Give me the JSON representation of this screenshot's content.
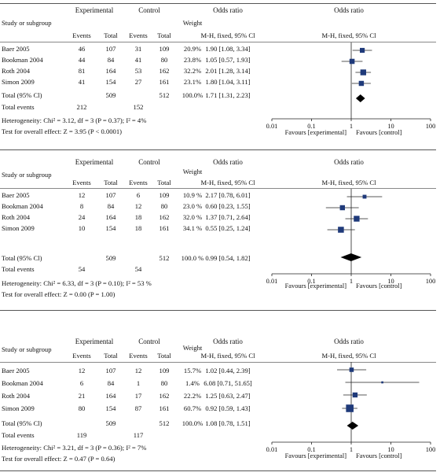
{
  "columns": {
    "study": "Study or subgroup",
    "experimental": "Experimental",
    "control": "Control",
    "events": "Events",
    "total": "Total",
    "weight": "Weight",
    "or_group": "Odds ratio",
    "or_method": "M-H, fixed, 95% Cl",
    "plot_group": "Odds ratio",
    "plot_method": "M-H, fixed, 95% Cl"
  },
  "labels": {
    "total_ci": "Total (95% Cl)",
    "total_events": "Total events"
  },
  "axis": {
    "favours_left": "Favours [experimental]",
    "favours_right": "Favours [control]"
  },
  "chart_data": [
    {
      "type": "forest",
      "axis_scale": "log",
      "xlim": [
        0.01,
        100
      ],
      "ticks": [
        {
          "value": 0.01,
          "label": "0.01"
        },
        {
          "value": 0.1,
          "label": "0.1"
        },
        {
          "value": 1,
          "label": "1"
        },
        {
          "value": 10,
          "label": "10"
        },
        {
          "value": 100,
          "label": "100"
        }
      ],
      "studies": [
        {
          "name": "Baer 2005",
          "exp_events": "46",
          "exp_total": "107",
          "ctl_events": "31",
          "ctl_total": "109",
          "weight": "20.9%",
          "or_text": "1.90 [1.08, 3.34]",
          "or": 1.9,
          "lo": 1.08,
          "hi": 3.34,
          "w": 20.9
        },
        {
          "name": "Bookman 2004",
          "exp_events": "44",
          "exp_total": "84",
          "ctl_events": "41",
          "ctl_total": "80",
          "weight": "23.8%",
          "or_text": "1.05 [0.57, 1.93]",
          "or": 1.05,
          "lo": 0.57,
          "hi": 1.93,
          "w": 23.8
        },
        {
          "name": "Roth 2004",
          "exp_events": "81",
          "exp_total": "164",
          "ctl_events": "53",
          "ctl_total": "162",
          "weight": "32.2%",
          "or_text": "2.01 [1.28, 3.14]",
          "or": 2.01,
          "lo": 1.28,
          "hi": 3.14,
          "w": 32.2
        },
        {
          "name": "Simon 2009",
          "exp_events": "41",
          "exp_total": "154",
          "ctl_events": "27",
          "ctl_total": "161",
          "weight": "23.1%",
          "or_text": "1.80 [1.04, 3.11]",
          "or": 1.8,
          "lo": 1.04,
          "hi": 3.11,
          "w": 23.1
        }
      ],
      "total": {
        "exp_total": "509",
        "ctl_total": "512",
        "weight": "100.0%",
        "or_text": "1.71 [1.31, 2.23]",
        "or": 1.71,
        "lo": 1.31,
        "hi": 2.23
      },
      "total_events": {
        "exp": "212",
        "ctl": "152"
      },
      "heterogeneity": "Heterogeneity: Chi² = 3.12, df = 3 (P = 0.37); I² = 4%",
      "overall_effect": "Test for overall effect: Z = 3.95 (P < 0.0001)"
    },
    {
      "type": "forest",
      "axis_scale": "log",
      "xlim": [
        0.01,
        100
      ],
      "ticks": [
        {
          "value": 0.01,
          "label": "0.01"
        },
        {
          "value": 0.1,
          "label": "0.1"
        },
        {
          "value": 1,
          "label": "1"
        },
        {
          "value": 10,
          "label": "10"
        },
        {
          "value": 100,
          "label": "100"
        }
      ],
      "studies": [
        {
          "name": "Baer 2005",
          "exp_events": "12",
          "exp_total": "107",
          "ctl_events": "6",
          "ctl_total": "109",
          "weight": "10.9 %",
          "or_text": "2.17 [0.78, 6.01]",
          "or": 2.17,
          "lo": 0.78,
          "hi": 6.01,
          "w": 10.9
        },
        {
          "name": "Bookman 2004",
          "exp_events": "8",
          "exp_total": "84",
          "ctl_events": "12",
          "ctl_total": "80",
          "weight": "23.0 %",
          "or_text": "0.60 [0.23, 1.55]",
          "or": 0.6,
          "lo": 0.23,
          "hi": 1.55,
          "w": 23.0
        },
        {
          "name": "Roth 2004",
          "exp_events": "24",
          "exp_total": "164",
          "ctl_events": "18",
          "ctl_total": "162",
          "weight": "32.0 %",
          "or_text": "1.37 [0.71, 2.64]",
          "or": 1.37,
          "lo": 0.71,
          "hi": 2.64,
          "w": 32.0
        },
        {
          "name": "Simon 2009",
          "exp_events": "10",
          "exp_total": "154",
          "ctl_events": "18",
          "ctl_total": "161",
          "weight": "34.1 %",
          "or_text": "0.55 [0.25, 1.24]",
          "or": 0.55,
          "lo": 0.25,
          "hi": 1.24,
          "w": 34.1
        }
      ],
      "total": {
        "exp_total": "509",
        "ctl_total": "512",
        "weight": "100.0 %",
        "or_text": "0.99 [0.54, 1.82]",
        "or": 0.99,
        "lo": 0.54,
        "hi": 1.82
      },
      "total_events": {
        "exp": "54",
        "ctl": "54"
      },
      "heterogeneity": "Heterogeneity: Chi² = 6.33, df = 3 (P = 0.10); I² = 53 %",
      "overall_effect": "Test for overall effect: Z = 0.00 (P = 1.00)"
    },
    {
      "type": "forest",
      "axis_scale": "log",
      "xlim": [
        0.01,
        100
      ],
      "ticks": [
        {
          "value": 0.01,
          "label": "0.01"
        },
        {
          "value": 0.1,
          "label": "0.1"
        },
        {
          "value": 1,
          "label": "1"
        },
        {
          "value": 10,
          "label": "10"
        },
        {
          "value": 100,
          "label": "100"
        }
      ],
      "studies": [
        {
          "name": "Baer 2005",
          "exp_events": "12",
          "exp_total": "107",
          "ctl_events": "12",
          "ctl_total": "109",
          "weight": "15.7%",
          "or_text": "1.02 [0.44, 2.39]",
          "or": 1.02,
          "lo": 0.44,
          "hi": 2.39,
          "w": 15.7
        },
        {
          "name": "Bookman 2004",
          "exp_events": "6",
          "exp_total": "84",
          "ctl_events": "1",
          "ctl_total": "80",
          "weight": "1.4%",
          "or_text": "6.08 [0.71, 51.65]",
          "or": 6.08,
          "lo": 0.71,
          "hi": 51.65,
          "w": 1.4
        },
        {
          "name": "Roth 2004",
          "exp_events": "21",
          "exp_total": "164",
          "ctl_events": "17",
          "ctl_total": "162",
          "weight": "22.2%",
          "or_text": "1.25 [0.63, 2.47]",
          "or": 1.25,
          "lo": 0.63,
          "hi": 2.47,
          "w": 22.2
        },
        {
          "name": "Simon 2009",
          "exp_events": "80",
          "exp_total": "154",
          "ctl_events": "87",
          "ctl_total": "161",
          "weight": "60.7%",
          "or_text": "0.92 [0.59, 1.43]",
          "or": 0.92,
          "lo": 0.59,
          "hi": 1.43,
          "w": 60.7
        }
      ],
      "total": {
        "exp_total": "509",
        "ctl_total": "512",
        "weight": "100.0%",
        "or_text": "1.08 [0.78, 1.51]",
        "or": 1.08,
        "lo": 0.78,
        "hi": 1.51
      },
      "total_events": {
        "exp": "119",
        "ctl": "117"
      },
      "heterogeneity": "Heterogeneity: Chi² = 3.21, df = 3 (P = 0.36); I² = 7%",
      "overall_effect": "Test for overall effect: Z = 0.47 (P = 0.64)"
    }
  ]
}
